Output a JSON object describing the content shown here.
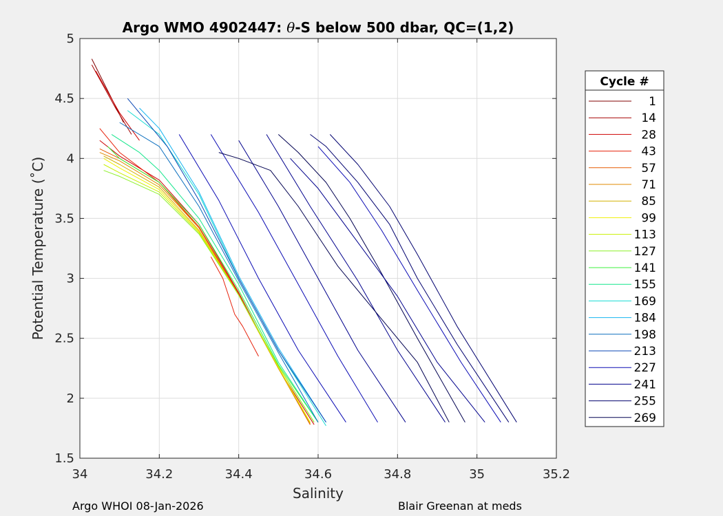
{
  "chart_data": {
    "type": "line",
    "title_left": "Argo WMO 4902447: ",
    "title_theta": "θ",
    "title_right": "-S below 500 dbar,  QC=(1,2)",
    "xlabel": "Salinity",
    "ylabel": "Potential Temperature (˚C)",
    "xlim": [
      34,
      35.2
    ],
    "ylim": [
      1.5,
      5
    ],
    "xticks": [
      34,
      34.2,
      34.4,
      34.6,
      34.8,
      35,
      35.2
    ],
    "xtick_labels": [
      "34",
      "34.2",
      "34.4",
      "34.6",
      "34.8",
      "35",
      "35.2"
    ],
    "yticks": [
      1.5,
      2,
      2.5,
      3,
      3.5,
      4,
      4.5,
      5
    ],
    "ytick_labels": [
      "1.5",
      "2",
      "2.5",
      "3",
      "3.5",
      "4",
      "4.5",
      "5"
    ],
    "grid": true,
    "legend_title": "Cycle #",
    "legend_placement": "right-outside",
    "legend": [
      {
        "label": "1",
        "color": "#800000"
      },
      {
        "label": "14",
        "color": "#a50000"
      },
      {
        "label": "28",
        "color": "#cd0000"
      },
      {
        "label": "43",
        "color": "#e6200a"
      },
      {
        "label": "57",
        "color": "#e65a00"
      },
      {
        "label": "71",
        "color": "#e08a00"
      },
      {
        "label": "85",
        "color": "#d4b000"
      },
      {
        "label": "99",
        "color": "#f0f000"
      },
      {
        "label": "113",
        "color": "#c8f000"
      },
      {
        "label": "127",
        "color": "#8cf028"
      },
      {
        "label": "141",
        "color": "#3cf03c"
      },
      {
        "label": "155",
        "color": "#14e68c"
      },
      {
        "label": "169",
        "color": "#14dcd2"
      },
      {
        "label": "184",
        "color": "#14b4f0"
      },
      {
        "label": "198",
        "color": "#0a6ebe"
      },
      {
        "label": "213",
        "color": "#0a46b4"
      },
      {
        "label": "227",
        "color": "#0a0ab4"
      },
      {
        "label": "241",
        "color": "#00008c"
      },
      {
        "label": "255",
        "color": "#00006e"
      },
      {
        "label": "269",
        "color": "#000050"
      }
    ],
    "series": [
      {
        "color": "#800000",
        "x": [
          34.03,
          34.08,
          34.11
        ],
        "y": [
          4.83,
          4.5,
          4.3
        ]
      },
      {
        "color": "#a50000",
        "x": [
          34.03,
          34.09,
          34.13
        ],
        "y": [
          4.78,
          4.42,
          4.2
        ]
      },
      {
        "color": "#cd0000",
        "x": [
          34.04,
          34.1,
          34.15
        ],
        "y": [
          4.73,
          4.38,
          4.15
        ]
      },
      {
        "color": "#cd0000",
        "x": [
          34.05,
          34.1,
          34.2,
          34.3,
          34.4,
          34.5,
          34.59
        ],
        "y": [
          4.15,
          4.02,
          3.82,
          3.45,
          2.88,
          2.25,
          1.78
        ]
      },
      {
        "color": "#e6200a",
        "x": [
          34.05,
          34.1,
          34.2,
          34.3,
          34.4,
          34.5,
          34.58
        ],
        "y": [
          4.25,
          4.05,
          3.8,
          3.43,
          2.87,
          2.25,
          1.78
        ]
      },
      {
        "color": "#e6200a",
        "x": [
          34.33,
          34.36,
          34.39,
          34.41,
          34.45
        ],
        "y": [
          3.18,
          3.0,
          2.7,
          2.6,
          2.35
        ]
      },
      {
        "color": "#e65a00",
        "x": [
          34.05,
          34.1,
          34.2,
          34.3,
          34.4,
          34.5,
          34.58
        ],
        "y": [
          4.08,
          4.0,
          3.8,
          3.42,
          2.86,
          2.25,
          1.78
        ]
      },
      {
        "color": "#e08a00",
        "x": [
          34.05,
          34.1,
          34.2,
          34.3,
          34.4,
          34.5,
          34.58
        ],
        "y": [
          4.05,
          3.98,
          3.78,
          3.42,
          2.86,
          2.25,
          1.79
        ]
      },
      {
        "color": "#d4b000",
        "x": [
          34.06,
          34.1,
          34.2,
          34.3,
          34.4,
          34.5,
          34.58
        ],
        "y": [
          4.02,
          3.95,
          3.76,
          3.4,
          2.86,
          2.25,
          1.79
        ]
      },
      {
        "color": "#f0f000",
        "x": [
          34.06,
          34.1,
          34.2,
          34.3,
          34.4,
          34.5,
          34.58
        ],
        "y": [
          4.0,
          3.92,
          3.74,
          3.39,
          2.86,
          2.26,
          1.8
        ]
      },
      {
        "color": "#c8f000",
        "x": [
          34.06,
          34.1,
          34.2,
          34.3,
          34.4,
          34.5,
          34.59
        ],
        "y": [
          3.95,
          3.88,
          3.72,
          3.38,
          2.86,
          2.27,
          1.8
        ]
      },
      {
        "color": "#8cf028",
        "x": [
          34.06,
          34.1,
          34.2,
          34.3,
          34.4,
          34.5,
          34.59
        ],
        "y": [
          3.9,
          3.85,
          3.7,
          3.37,
          2.86,
          2.27,
          1.8
        ]
      },
      {
        "color": "#3cf03c",
        "x": [
          34.07,
          34.1,
          34.2,
          34.3,
          34.4,
          34.5,
          34.6
        ],
        "y": [
          4.1,
          4.0,
          3.8,
          3.45,
          2.9,
          2.28,
          1.8
        ]
      },
      {
        "color": "#14e68c",
        "x": [
          34.08,
          34.15,
          34.2,
          34.3,
          34.4,
          34.5,
          34.6
        ],
        "y": [
          4.2,
          4.05,
          3.9,
          3.5,
          2.95,
          2.3,
          1.8
        ]
      },
      {
        "color": "#14dcd2",
        "x": [
          34.12,
          34.2,
          34.3,
          34.4,
          34.5,
          34.62
        ],
        "y": [
          4.4,
          4.2,
          3.7,
          3.0,
          2.4,
          1.77
        ]
      },
      {
        "color": "#14b4f0",
        "x": [
          34.15,
          34.2,
          34.3,
          34.4,
          34.5,
          34.62
        ],
        "y": [
          4.42,
          4.25,
          3.72,
          3.02,
          2.42,
          1.8
        ]
      },
      {
        "color": "#0a6ebe",
        "x": [
          34.1,
          34.2,
          34.3,
          34.4,
          34.5,
          34.6
        ],
        "y": [
          4.3,
          4.1,
          3.6,
          2.98,
          2.38,
          1.8
        ]
      },
      {
        "color": "#0a46b4",
        "x": [
          34.12,
          34.22,
          34.3,
          34.4,
          34.5,
          34.62
        ],
        "y": [
          4.5,
          4.1,
          3.65,
          3.0,
          2.4,
          1.8
        ]
      },
      {
        "color": "#0a0ab4",
        "x": [
          34.25,
          34.35,
          34.45,
          34.55,
          34.67
        ],
        "y": [
          4.2,
          3.65,
          3.0,
          2.4,
          1.8
        ]
      },
      {
        "color": "#0a0ab4",
        "x": [
          34.33,
          34.45,
          34.55,
          34.65,
          34.75
        ],
        "y": [
          4.2,
          3.55,
          2.95,
          2.35,
          1.8
        ]
      },
      {
        "color": "#00008c",
        "x": [
          34.4,
          34.5,
          34.6,
          34.7,
          34.82
        ],
        "y": [
          4.15,
          3.6,
          3.0,
          2.4,
          1.8
        ]
      },
      {
        "color": "#00008c",
        "x": [
          34.47,
          34.58,
          34.7,
          34.8,
          34.92
        ],
        "y": [
          4.2,
          3.6,
          2.98,
          2.4,
          1.8
        ]
      },
      {
        "color": "#000050",
        "x": [
          34.35,
          34.4,
          34.48,
          34.55,
          34.6,
          34.65,
          34.75,
          34.85,
          34.93
        ],
        "y": [
          4.05,
          4.0,
          3.9,
          3.6,
          3.35,
          3.1,
          2.7,
          2.3,
          1.8
        ]
      },
      {
        "color": "#000050",
        "x": [
          34.5,
          34.55,
          34.62,
          34.68,
          34.75,
          34.85,
          34.97
        ],
        "y": [
          4.2,
          4.05,
          3.8,
          3.5,
          3.1,
          2.5,
          1.8
        ]
      },
      {
        "color": "#00006e",
        "x": [
          34.58,
          34.62,
          34.7,
          34.78,
          34.85,
          34.95,
          35.08
        ],
        "y": [
          4.2,
          4.1,
          3.8,
          3.45,
          3.0,
          2.45,
          1.8
        ]
      },
      {
        "color": "#00006e",
        "x": [
          34.63,
          34.7,
          34.78,
          34.85,
          34.95,
          35.1
        ],
        "y": [
          4.2,
          3.95,
          3.6,
          3.2,
          2.6,
          1.8
        ]
      },
      {
        "color": "#00008c",
        "x": [
          34.53,
          34.6,
          34.7,
          34.8,
          34.9,
          35.02
        ],
        "y": [
          4.0,
          3.75,
          3.3,
          2.85,
          2.3,
          1.8
        ]
      },
      {
        "color": "#0a0ab4",
        "x": [
          34.6,
          34.68,
          34.76,
          34.85,
          34.96,
          35.06
        ],
        "y": [
          4.1,
          3.8,
          3.4,
          2.9,
          2.3,
          1.8
        ]
      }
    ]
  },
  "footer_left": "Argo WHOI 08-Jan-2026",
  "footer_right": "Blair Greenan at meds"
}
